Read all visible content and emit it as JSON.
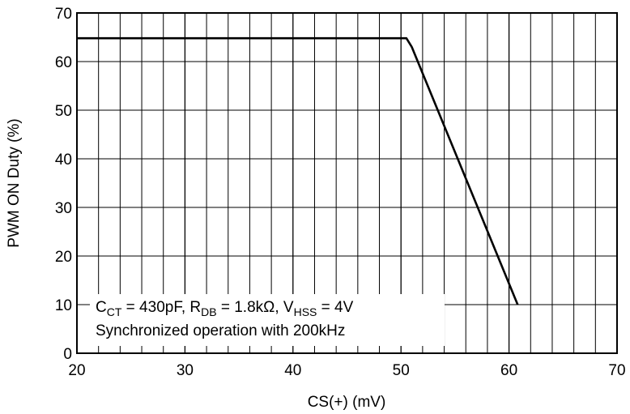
{
  "chart_data": {
    "type": "line",
    "xlabel": "CS(+)  (mV)",
    "ylabel": "PWM ON Duty  (%)",
    "xlim": [
      20,
      70
    ],
    "ylim": [
      0,
      70
    ],
    "x_ticks": [
      "20",
      "30",
      "40",
      "50",
      "60",
      "70"
    ],
    "y_ticks": [
      "0",
      "10",
      "20",
      "30",
      "40",
      "50",
      "60",
      "70"
    ],
    "grid": true,
    "series": [
      {
        "x": [
          20,
          50.5,
          51.0,
          60.8
        ],
        "y": [
          64.8,
          64.8,
          63.0,
          10.0
        ]
      }
    ],
    "annotation": {
      "line1": {
        "c": "C",
        "c_sub": "CT",
        "c_val": " = 430pF, ",
        "r": "R",
        "r_sub": "DB",
        "r_val": " = 1.8kΩ, ",
        "v": "V",
        "v_sub": "HSS",
        "v_val": " = 4V"
      },
      "line2": "Synchronized operation with 200kHz"
    }
  }
}
